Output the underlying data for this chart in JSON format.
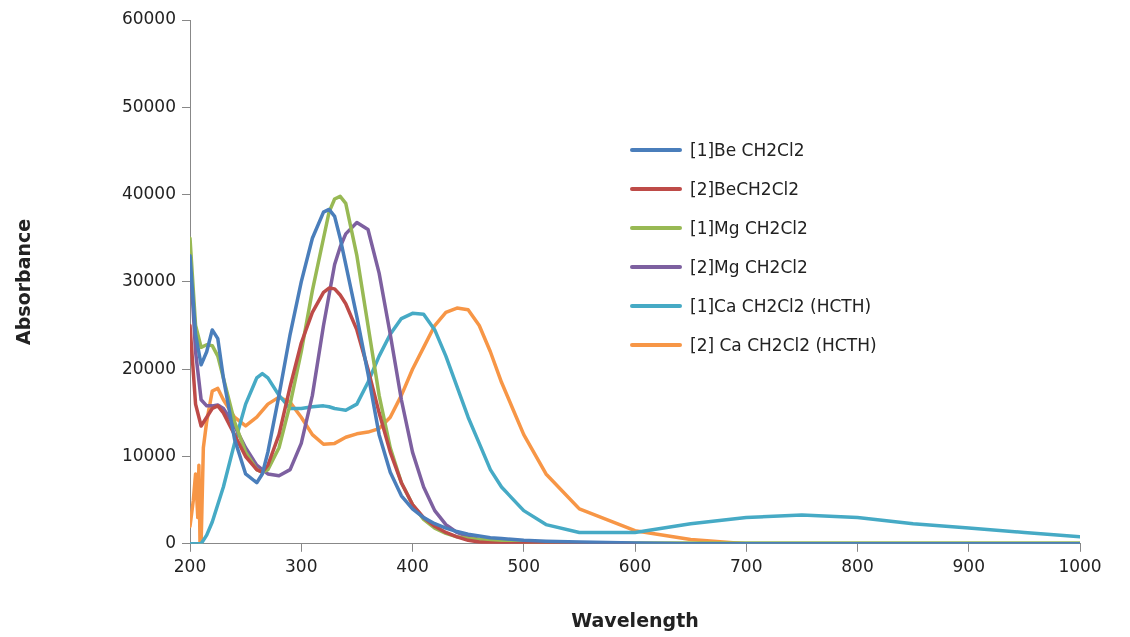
{
  "chart_data": {
    "type": "line",
    "xlabel": "Wavelength",
    "ylabel": "Absorbance",
    "xlim": [
      200,
      1000
    ],
    "ylim": [
      0,
      60000
    ],
    "xticks": [
      200,
      300,
      400,
      500,
      600,
      700,
      800,
      900,
      1000
    ],
    "yticks": [
      0,
      10000,
      20000,
      30000,
      40000,
      50000,
      60000
    ],
    "grid": false,
    "legend": "right",
    "marker": "none",
    "line_style": "solid",
    "x": [
      200,
      205,
      210,
      215,
      220,
      225,
      230,
      240,
      250,
      260,
      265,
      270,
      280,
      290,
      300,
      310,
      320,
      325,
      330,
      335,
      340,
      350,
      360,
      370,
      380,
      390,
      400,
      410,
      420,
      430,
      440,
      450,
      460,
      470,
      480,
      500,
      520,
      550,
      600,
      650,
      700,
      750,
      800,
      850,
      900,
      950,
      1000
    ],
    "series": [
      {
        "name": "[1]Be CH2Cl2",
        "color": "#4a7ebb",
        "values": [
          33000,
          24000,
          20500,
          22000,
          24500,
          23500,
          19000,
          12000,
          8000,
          7000,
          8000,
          10500,
          17000,
          24000,
          30000,
          35000,
          38000,
          38300,
          37500,
          35000,
          32000,
          26000,
          19500,
          12500,
          8200,
          5500,
          4000,
          3000,
          2300,
          1800,
          1400,
          1100,
          900,
          700,
          600,
          400,
          300,
          200,
          100,
          0,
          0,
          0,
          0,
          0,
          0,
          0,
          0
        ]
      },
      {
        "name": "[2]BeCH2Cl2",
        "color": "#be4b48",
        "values": [
          25000,
          16000,
          13500,
          14500,
          15500,
          15800,
          15000,
          12500,
          10000,
          8500,
          8200,
          9000,
          12500,
          18000,
          23000,
          26500,
          28800,
          29300,
          29200,
          28500,
          27500,
          24500,
          20000,
          15000,
          10500,
          7000,
          4500,
          3000,
          2000,
          1300,
          800,
          400,
          200,
          100,
          0,
          0,
          0,
          0,
          0,
          null,
          null,
          null,
          null,
          null,
          null,
          null,
          null
        ]
      },
      {
        "name": "[1]Mg CH2Cl2",
        "color": "#98b954",
        "values": [
          35000,
          25000,
          22500,
          22800,
          22700,
          21500,
          19000,
          14000,
          10500,
          8500,
          8200,
          8500,
          11000,
          16000,
          22000,
          29000,
          35000,
          38000,
          39500,
          39800,
          39000,
          33000,
          25000,
          17000,
          11000,
          7000,
          4500,
          2800,
          1800,
          1200,
          800,
          600,
          500,
          400,
          300,
          200,
          100,
          100,
          100,
          100,
          100,
          100,
          100,
          100,
          100,
          100,
          100
        ]
      },
      {
        "name": "[2]Mg CH2Cl2",
        "color": "#7d60a0",
        "values": [
          33000,
          22000,
          16500,
          15800,
          15800,
          15900,
          15500,
          13500,
          11000,
          9000,
          8500,
          8000,
          7800,
          8500,
          11500,
          17000,
          25000,
          28500,
          32000,
          34000,
          35500,
          36800,
          36000,
          31000,
          24000,
          16500,
          10500,
          6500,
          3800,
          2200,
          1300,
          800,
          500,
          300,
          200,
          0,
          0,
          0,
          0,
          0,
          0,
          0,
          0,
          0,
          0,
          0,
          0
        ]
      },
      {
        "name": "[1]Ca CH2Cl2 (HCTH)",
        "color": "#46aac5",
        "values": [
          0,
          0,
          0,
          1000,
          2500,
          4500,
          6500,
          11500,
          16000,
          19000,
          19500,
          19000,
          17000,
          15500,
          15500,
          15700,
          15800,
          15700,
          15500,
          15400,
          15300,
          16000,
          18500,
          21500,
          24000,
          25800,
          26400,
          26300,
          24500,
          21500,
          18000,
          14500,
          11500,
          8500,
          6500,
          3800,
          2200,
          1300,
          1300,
          2300,
          3000,
          3300,
          3000,
          2300,
          1800,
          1300,
          800
        ]
      },
      {
        "name": "[2] Ca CH2Cl2 (HCTH)",
        "color": "#f79646",
        "x": [
          200,
          203,
          205,
          207,
          208,
          209,
          210,
          212,
          215,
          220,
          225,
          230,
          240,
          250,
          260,
          270,
          280,
          290,
          300,
          310,
          320,
          330,
          340,
          350,
          360,
          370,
          380,
          390,
          400,
          410,
          420,
          430,
          440,
          450,
          460,
          470,
          480,
          490,
          500,
          520,
          550,
          600,
          650,
          700
        ],
        "values": [
          2000,
          5000,
          8000,
          3000,
          9000,
          0,
          0,
          11000,
          14000,
          17500,
          17800,
          16500,
          14500,
          13500,
          14500,
          16000,
          16800,
          16200,
          14500,
          12500,
          11400,
          11500,
          12200,
          12600,
          12800,
          13200,
          14500,
          17000,
          20000,
          22500,
          25000,
          26500,
          27000,
          26800,
          25000,
          22000,
          18500,
          15500,
          12500,
          8000,
          4000,
          1500,
          500,
          0
        ]
      }
    ]
  }
}
